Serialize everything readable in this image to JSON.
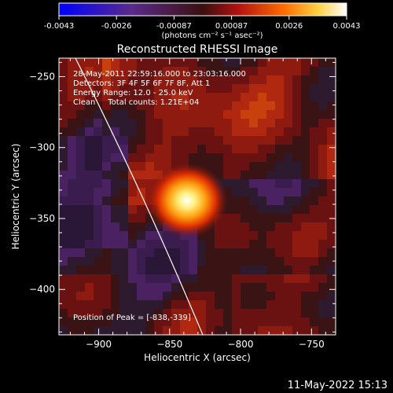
{
  "colorbar": {
    "tick_labels": [
      "-0.0043",
      "-0.0026",
      "-0.00087",
      "0.00087",
      "0.0026",
      "0.0043"
    ],
    "units_label": "(photons cm⁻² s⁻¹ asec⁻²)"
  },
  "plot": {
    "title": "Reconstructed RHESSI Image",
    "xlabel": "Heliocentric X (arcsec)",
    "ylabel": "Heliocentric Y (arcsec)",
    "x_ticks": [
      "-900",
      "-850",
      "-800",
      "-750"
    ],
    "y_ticks": [
      "-250",
      "-300",
      "-350",
      "-400"
    ],
    "xlim": [
      -928,
      -733
    ],
    "ylim": [
      -432,
      -237
    ],
    "info_lines": [
      "28-May-2011 22:59:16.000 to 23:03:16.000",
      "Detectors: 3F 4F 5F 6F 7F 8F, Att 1",
      "Energy Range: 12.0 - 25.0 keV",
      "Clean     Total counts: 1.21E+04"
    ],
    "peak_label": "Position of Peak = [-838,-339]",
    "peak": [
      -838,
      -339
    ]
  },
  "footer": {
    "timestamp": "11-May-2022 15:13"
  },
  "colors": {
    "background": "#000000",
    "text": "#ffffff",
    "limb_line": "#ffffff"
  }
}
